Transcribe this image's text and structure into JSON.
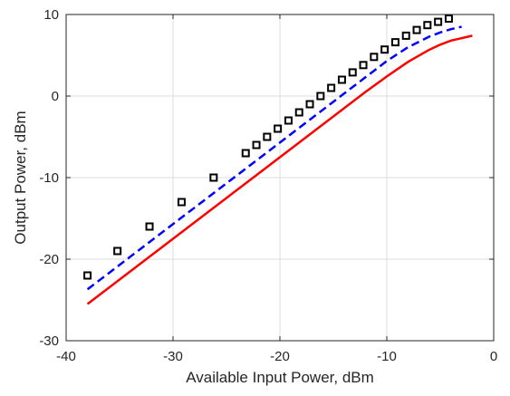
{
  "chart_data": {
    "type": "line",
    "title": "",
    "xlabel": "Available Input Power, dBm",
    "ylabel": "Output Power, dBm",
    "xlim": [
      -40,
      0
    ],
    "ylim": [
      -30,
      10
    ],
    "xticks": [
      -40,
      -30,
      -20,
      -10,
      0
    ],
    "yticks": [
      -30,
      -20,
      -10,
      0,
      10
    ],
    "xtick_labels": [
      "-40",
      "-30",
      "-20",
      "-10",
      "0"
    ],
    "ytick_labels": [
      "-30",
      "-20",
      "-10",
      "0",
      "10"
    ],
    "grid": true,
    "series": [
      {
        "kind": "line",
        "style": "solid",
        "color": "#ff0000",
        "x": [
          -38,
          -34,
          -30,
          -26,
          -22,
          -18,
          -14,
          -12,
          -10,
          -8,
          -6,
          -5,
          -4,
          -3,
          -2
        ],
        "y": [
          -25.5,
          -21.5,
          -17.5,
          -13.5,
          -9.5,
          -5.5,
          -1.5,
          0.5,
          2.4,
          4.2,
          5.7,
          6.3,
          6.8,
          7.1,
          7.4
        ]
      },
      {
        "kind": "line",
        "style": "dashed",
        "color": "#0000ff",
        "x": [
          -38,
          -34,
          -30,
          -26,
          -22,
          -18,
          -14,
          -12,
          -10,
          -8,
          -6,
          -5,
          -4,
          -3
        ],
        "y": [
          -23.7,
          -19.7,
          -15.7,
          -11.7,
          -7.7,
          -3.7,
          0.3,
          2.3,
          4.3,
          6.0,
          7.3,
          7.8,
          8.2,
          8.5
        ]
      },
      {
        "kind": "markers",
        "marker": "square",
        "color": "#000000",
        "x": [
          -38,
          -35.2,
          -32.2,
          -29.2,
          -26.2,
          -23.2,
          -22.2,
          -21.2,
          -20.2,
          -19.2,
          -18.2,
          -17.2,
          -16.2,
          -15.2,
          -14.2,
          -13.2,
          -12.2,
          -11.2,
          -10.2,
          -9.2,
          -8.2,
          -7.2,
          -6.2,
          -5.2,
          -4.2
        ],
        "y": [
          -22,
          -19,
          -16,
          -13,
          -10,
          -7,
          -6,
          -5,
          -4,
          -3,
          -2,
          -1,
          0,
          1,
          2,
          2.9,
          3.8,
          4.8,
          5.7,
          6.6,
          7.4,
          8.1,
          8.7,
          9.1,
          9.5
        ]
      }
    ]
  }
}
